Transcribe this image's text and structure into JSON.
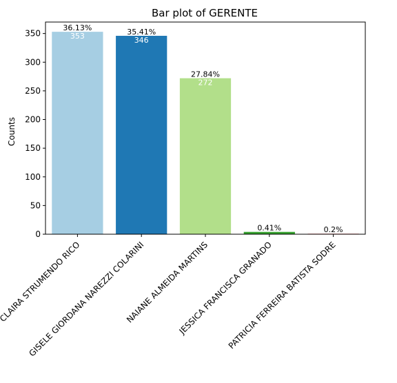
{
  "chart_data": {
    "type": "bar",
    "title": "Bar plot of GERENTE",
    "xlabel": "",
    "ylabel": "Counts",
    "ylim": [
      0,
      370
    ],
    "yticks": [
      0,
      50,
      100,
      150,
      200,
      250,
      300,
      350
    ],
    "categories": [
      "CLAIRA STRUMENDO RICO",
      "GISELE GIORDANA NAREZZI COLARINI",
      "NAIANE ALMEIDA MARTINS",
      "JESSICA FRANCISCA GRANADO",
      "PATRICIA FERREIRA BATISTA SODRE"
    ],
    "values": [
      353,
      346,
      272,
      4,
      1
    ],
    "value_labels": [
      "353",
      "346",
      "272",
      "",
      ""
    ],
    "percent_labels": [
      "36.13%",
      "35.41%",
      "27.84%",
      "0.41%",
      "0.2%"
    ],
    "colors": [
      "#a6cee3",
      "#1f78b4",
      "#b2df8a",
      "#33a02c",
      "#fb9a99"
    ],
    "grid": false,
    "legend": "none"
  }
}
